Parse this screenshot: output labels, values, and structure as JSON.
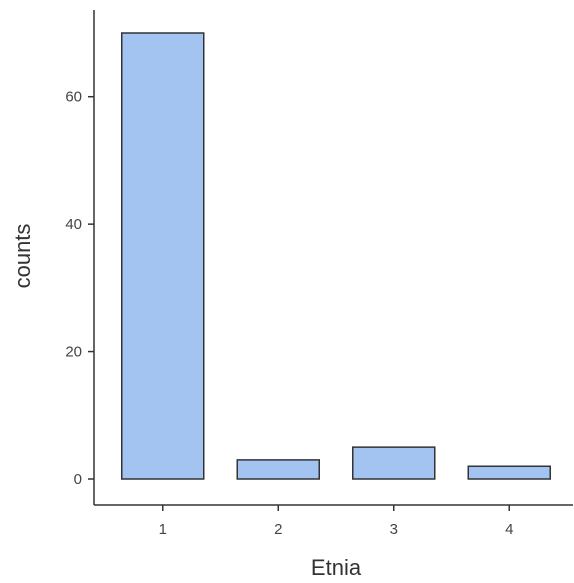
{
  "chart_data": {
    "type": "bar",
    "title": "",
    "xlabel": "Etnia",
    "ylabel": "counts",
    "categories": [
      "1",
      "2",
      "3",
      "4"
    ],
    "values": [
      70,
      3,
      5,
      2
    ],
    "yticks": [
      0,
      20,
      40,
      60
    ],
    "ylim": [
      0,
      70
    ],
    "grid": false,
    "legend": "none",
    "bar_fill": "#a3c3f0",
    "bar_stroke": "#333333",
    "axis_color": "#333333"
  }
}
